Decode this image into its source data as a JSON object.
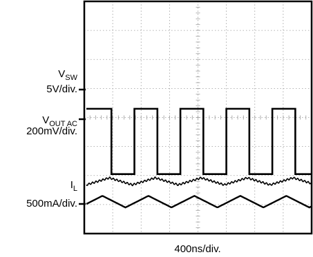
{
  "chart_data": {
    "type": "line",
    "grid": true,
    "x_scale_label": "400ns/div.",
    "channels": [
      {
        "name_main": "V",
        "name_sub": "SW",
        "scale": "5V/div.",
        "waveform": "square",
        "periods": 4.9,
        "duty": 0.5,
        "high_div": 4.3,
        "low_div": 2.05,
        "color": "#000000"
      },
      {
        "name_main": "V",
        "name_sub": "OUT AC",
        "scale": "200mV/div.",
        "waveform": "sawtooth-ripple",
        "periods": 4.9,
        "center_div": 1.8,
        "amplitude_div": 0.12,
        "color": "#000000"
      },
      {
        "name_main": "I",
        "name_sub": "L",
        "scale": "500mA/div.",
        "waveform": "triangle",
        "periods": 4.9,
        "center_div": 0.1,
        "amplitude_div": 0.2,
        "color": "#000000"
      }
    ],
    "divisions": {
      "x": 8,
      "y": 8
    }
  }
}
